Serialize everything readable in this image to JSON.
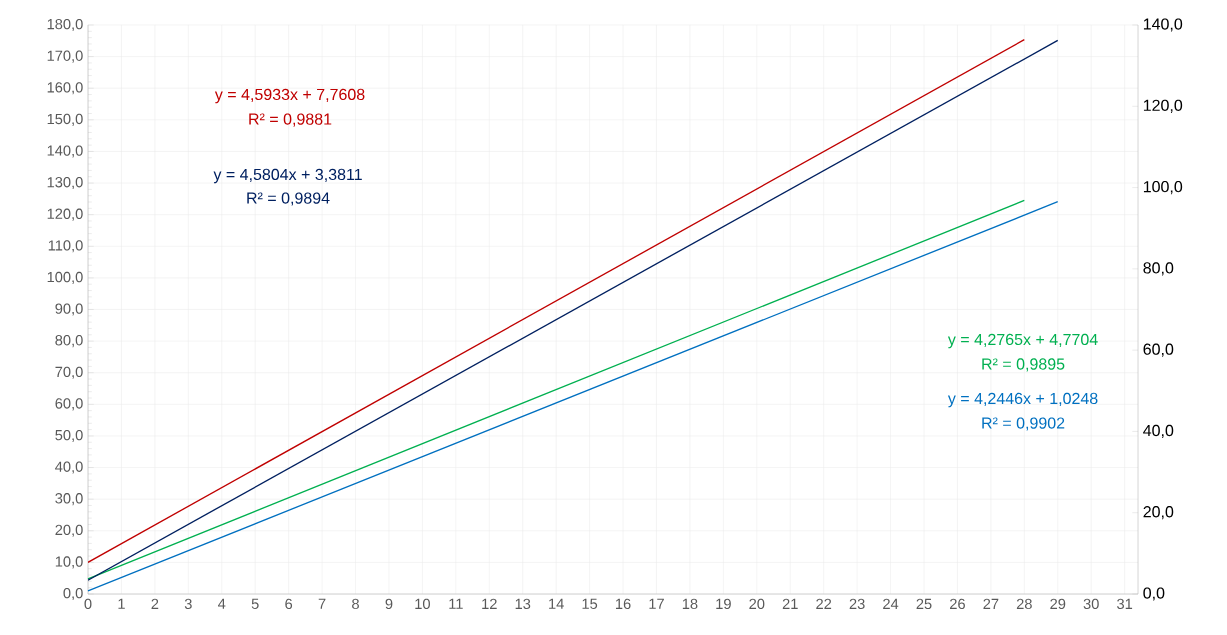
{
  "chart_data": {
    "type": "line",
    "xlim": [
      0,
      31.4
    ],
    "xticks": [
      0,
      1,
      2,
      3,
      4,
      5,
      6,
      7,
      8,
      9,
      10,
      11,
      12,
      13,
      14,
      15,
      16,
      17,
      18,
      19,
      20,
      21,
      22,
      23,
      24,
      25,
      26,
      27,
      28,
      29,
      30,
      31
    ],
    "ylim": [
      0,
      180
    ],
    "yticks": [
      {
        "value": 0,
        "label": "0,0"
      },
      {
        "value": 10,
        "label": "10,0"
      },
      {
        "value": 20,
        "label": "20,0"
      },
      {
        "value": 30,
        "label": "30,0"
      },
      {
        "value": 40,
        "label": "40,0"
      },
      {
        "value": 50,
        "label": "50,0"
      },
      {
        "value": 60,
        "label": "60,0"
      },
      {
        "value": 70,
        "label": "70,0"
      },
      {
        "value": 80,
        "label": "80,0"
      },
      {
        "value": 90,
        "label": "90,0"
      },
      {
        "value": 100,
        "label": "100,0"
      },
      {
        "value": 110,
        "label": "110,0"
      },
      {
        "value": 120,
        "label": "120,0"
      },
      {
        "value": 130,
        "label": "130,0"
      },
      {
        "value": 140,
        "label": "140,0"
      },
      {
        "value": 150,
        "label": "150,0"
      },
      {
        "value": 160,
        "label": "160,0"
      },
      {
        "value": 170,
        "label": "170,0"
      },
      {
        "value": 180,
        "label": "180,0"
      }
    ],
    "y2lim": [
      0,
      140
    ],
    "y2ticks": [
      {
        "value": 0,
        "label": "0,0"
      },
      {
        "value": 20,
        "label": "20,0"
      },
      {
        "value": 40,
        "label": "40,0"
      },
      {
        "value": 60,
        "label": "60,0"
      },
      {
        "value": 80,
        "label": "80,0"
      },
      {
        "value": 100,
        "label": "100,0"
      },
      {
        "value": 120,
        "label": "120,0"
      },
      {
        "value": 140,
        "label": "140,0"
      }
    ],
    "grid": true,
    "marker": "none",
    "line_style": "solid",
    "series": [
      {
        "color": "#c00000",
        "axis": "y2",
        "x": [
          0,
          28
        ],
        "values": [
          7.8,
          136.4
        ]
      },
      {
        "color": "#002060",
        "axis": "y2",
        "x": [
          0,
          29
        ],
        "values": [
          3.4,
          136.2
        ]
      },
      {
        "color": "#00b050",
        "x": [
          0,
          28
        ],
        "values": [
          4.8,
          124.5
        ]
      },
      {
        "color": "#0070c0",
        "x": [
          0,
          29
        ],
        "values": [
          1.0,
          124.1
        ]
      }
    ],
    "annotations": [
      "y = 4,5933x + 7,7608",
      "R² = 0,9881",
      "y = 4,5804x + 3,3811",
      "R² = 0,9894",
      "y = 4,2765x + 4,7704",
      "R² = 0,9895",
      "y = 4,2446x + 1,0248",
      "R² = 0,9902"
    ]
  }
}
